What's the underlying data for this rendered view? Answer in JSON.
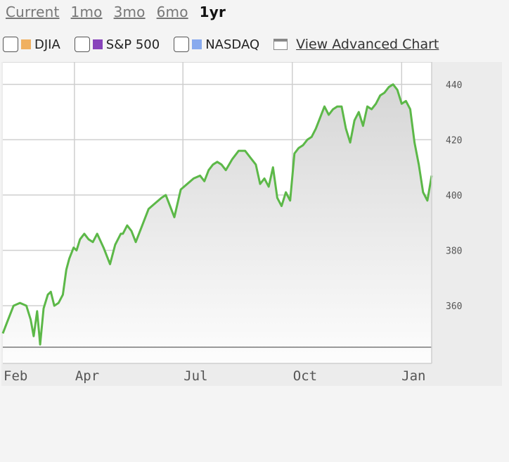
{
  "tabs": [
    {
      "label": "Current",
      "active": false
    },
    {
      "label": "1mo",
      "active": false
    },
    {
      "label": "3mo",
      "active": false
    },
    {
      "label": "6mo",
      "active": false
    },
    {
      "label": "1yr",
      "active": true
    }
  ],
  "compare": [
    {
      "label": "DJIA",
      "color": "#f0b060"
    },
    {
      "label": "S&P 500",
      "color": "#8844bb"
    },
    {
      "label": "NASDAQ",
      "color": "#88aaee"
    }
  ],
  "advanced_link": "View Advanced Chart",
  "chart_data": {
    "type": "area",
    "line_color": "#5cb848",
    "grid": true,
    "ylim": [
      345,
      443
    ],
    "yticks": [
      360,
      380,
      400,
      420,
      440
    ],
    "xticks": [
      "Feb",
      "Apr",
      "Jul",
      "Oct",
      "Jan"
    ],
    "x": [
      0,
      0.01,
      0.025,
      0.04,
      0.055,
      0.065,
      0.072,
      0.08,
      0.087,
      0.095,
      0.105,
      0.112,
      0.12,
      0.13,
      0.14,
      0.148,
      0.155,
      0.165,
      0.172,
      0.18,
      0.19,
      0.2,
      0.21,
      0.22,
      0.235,
      0.25,
      0.262,
      0.275,
      0.28,
      0.29,
      0.3,
      0.31,
      0.325,
      0.34,
      0.355,
      0.37,
      0.38,
      0.39,
      0.4,
      0.415,
      0.43,
      0.445,
      0.46,
      0.47,
      0.48,
      0.49,
      0.5,
      0.51,
      0.52,
      0.535,
      0.55,
      0.565,
      0.58,
      0.59,
      0.6,
      0.61,
      0.62,
      0.63,
      0.64,
      0.65,
      0.66,
      0.67,
      0.68,
      0.69,
      0.7,
      0.71,
      0.72,
      0.73,
      0.74,
      0.75,
      0.76,
      0.77,
      0.78,
      0.79,
      0.8,
      0.81,
      0.82,
      0.83,
      0.84,
      0.85,
      0.86,
      0.87,
      0.88,
      0.89,
      0.9,
      0.91,
      0.92,
      0.93,
      0.94,
      0.95,
      0.96,
      0.97,
      0.98,
      0.99,
      1.0
    ],
    "values": [
      350,
      354,
      360,
      361,
      360,
      355,
      349,
      358,
      346,
      359,
      364,
      365,
      360,
      361,
      364,
      373,
      377,
      381,
      380,
      384,
      386,
      384,
      383,
      386,
      381,
      375,
      382,
      386,
      386,
      389,
      387,
      383,
      389,
      395,
      397,
      399,
      400,
      396,
      392,
      402,
      404,
      406,
      407,
      405,
      409,
      411,
      412,
      411,
      409,
      413,
      416,
      416,
      413,
      411,
      404,
      406,
      403,
      410,
      399,
      396,
      401,
      398,
      415,
      417,
      418,
      420,
      421,
      424,
      428,
      432,
      429,
      431,
      432,
      432,
      424,
      419,
      427,
      430,
      425,
      432,
      431,
      433,
      436,
      437,
      439,
      440,
      438,
      433,
      434,
      431,
      419,
      411,
      401,
      398,
      407
    ]
  }
}
